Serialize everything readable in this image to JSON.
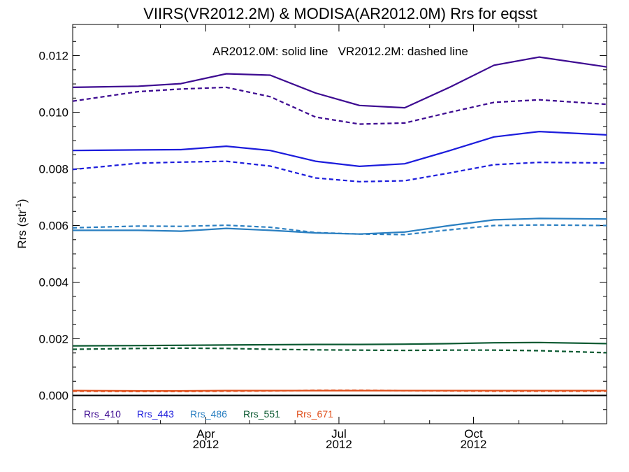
{
  "chart_data": {
    "type": "line",
    "title": "VIIRS(VR2012.2M) & MODISA(AR2012.0M)  Rrs for eqsst",
    "annotation": "AR2012.0M: solid line   VR2012.2M: dashed line",
    "ylabel_main": "Rrs (str",
    "ylabel_sup": "-1",
    "ylabel_close": ")",
    "xlim": [
      "2012-01-01",
      "2012-12-31"
    ],
    "ylim": [
      -0.001,
      0.0131
    ],
    "yticks": [
      0.0,
      0.002,
      0.004,
      0.006,
      0.008,
      0.01,
      0.012
    ],
    "ytick_labels": [
      "0.000",
      "0.002",
      "0.004",
      "0.006",
      "0.008",
      "0.010",
      "0.012"
    ],
    "xticks": [
      {
        "date": "2012-04-01",
        "label": "Apr",
        "sublabel": "2012"
      },
      {
        "date": "2012-07-01",
        "label": "Jul",
        "sublabel": "2012"
      },
      {
        "date": "2012-10-01",
        "label": "Oct",
        "sublabel": "2012"
      }
    ],
    "x": [
      "2012-01-01",
      "2012-02-15",
      "2012-03-15",
      "2012-04-15",
      "2012-05-15",
      "2012-06-15",
      "2012-07-15",
      "2012-08-15",
      "2012-09-15",
      "2012-10-15",
      "2012-11-15",
      "2012-12-31"
    ],
    "zero_line": true,
    "series": [
      {
        "name": "Rrs_410",
        "color": "#3d0a91",
        "solid": [
          0.01088,
          0.01092,
          0.01101,
          0.01136,
          0.01131,
          0.01068,
          0.01024,
          0.01016,
          0.01089,
          0.01166,
          0.01195,
          0.0116
        ],
        "dashed": [
          0.01039,
          0.01073,
          0.01082,
          0.01088,
          0.01055,
          0.00983,
          0.00958,
          0.00962,
          0.01,
          0.01035,
          0.01044,
          0.01028
        ]
      },
      {
        "name": "Rrs_443",
        "color": "#1c1cdc",
        "solid": [
          0.00865,
          0.00867,
          0.00868,
          0.0088,
          0.00865,
          0.00827,
          0.00809,
          0.00818,
          0.00865,
          0.00913,
          0.00932,
          0.0092
        ],
        "dashed": [
          0.00798,
          0.0082,
          0.00824,
          0.00827,
          0.0081,
          0.00768,
          0.00755,
          0.00758,
          0.00786,
          0.00815,
          0.00823,
          0.00821
        ],
        "label_color": "#1c1cdc"
      },
      {
        "name": "Rrs_486",
        "color": "#2a7fc1",
        "solid": [
          0.00583,
          0.00583,
          0.0058,
          0.0059,
          0.00583,
          0.00574,
          0.0057,
          0.00577,
          0.006,
          0.0062,
          0.00625,
          0.00623
        ],
        "dashed": [
          0.00592,
          0.00598,
          0.00597,
          0.00601,
          0.00594,
          0.00575,
          0.0057,
          0.00568,
          0.00585,
          0.006,
          0.00602,
          0.006
        ]
      },
      {
        "name": "Rrs_551",
        "color": "#0c5a32",
        "solid": [
          0.00175,
          0.00176,
          0.00177,
          0.00178,
          0.00179,
          0.0018,
          0.0018,
          0.00181,
          0.00183,
          0.00186,
          0.00187,
          0.00183
        ],
        "dashed": [
          0.00163,
          0.00166,
          0.00167,
          0.00166,
          0.00163,
          0.00161,
          0.0016,
          0.00159,
          0.0016,
          0.0016,
          0.00158,
          0.00151
        ]
      },
      {
        "name": "Rrs_671",
        "color": "#e0501c",
        "solid": [
          0.00017,
          0.00016,
          0.00016,
          0.00017,
          0.00017,
          0.00017,
          0.00017,
          0.00017,
          0.00017,
          0.00017,
          0.00017,
          0.00017
        ],
        "dashed": [
          0.00015,
          0.00014,
          0.00014,
          0.00015,
          0.00016,
          0.00018,
          0.00018,
          0.00017,
          0.00016,
          0.00015,
          0.00015,
          0.00015
        ]
      }
    ]
  }
}
